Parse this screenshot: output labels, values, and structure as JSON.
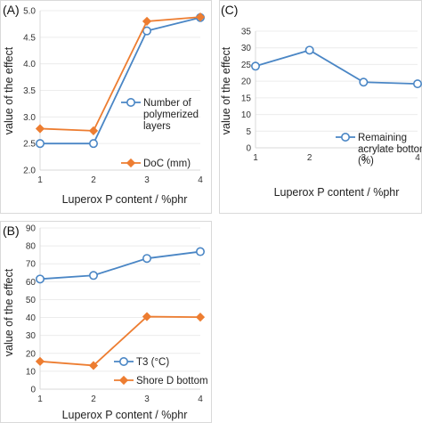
{
  "chart_data": [
    {
      "type": "line",
      "panel": "(A)",
      "xlabel": "Luperox P content / %phr",
      "ylabel": "value of the effect",
      "x": [
        1,
        2,
        3,
        4
      ],
      "xticks": [
        "1",
        "2",
        "3",
        "4"
      ],
      "ylim": [
        2.0,
        5.0
      ],
      "yticks": [
        "2.0",
        "2.5",
        "3.0",
        "3.5",
        "4.0",
        "4.5",
        "5.0"
      ],
      "series": [
        {
          "name": "Number of polymerized layers",
          "legend_lines": [
            "Number of",
            "polymerized",
            "layers"
          ],
          "marker": "circle",
          "color": "#4a86c5",
          "values": [
            2.5,
            2.5,
            4.62,
            4.87
          ]
        },
        {
          "name": "DoC (mm)",
          "legend_lines": [
            "DoC (mm)"
          ],
          "marker": "diamond",
          "color": "#ed7d31",
          "values": [
            2.78,
            2.74,
            4.8,
            4.88
          ]
        }
      ]
    },
    {
      "type": "line",
      "panel": "(C)",
      "xlabel": "Luperox P content / %phr",
      "ylabel": "value of the effect",
      "x": [
        1,
        2,
        3,
        4
      ],
      "xticks": [
        "1",
        "2",
        "3",
        "4"
      ],
      "ylim": [
        0,
        35
      ],
      "yticks": [
        "0",
        "5",
        "10",
        "15",
        "20",
        "25",
        "30",
        "35"
      ],
      "series": [
        {
          "name": "Remaining acrylate bottom (%)",
          "legend_lines": [
            "Remaining",
            "acrylate bottom",
            "(%)"
          ],
          "marker": "circle",
          "color": "#4a86c5",
          "values": [
            24.5,
            29.3,
            19.7,
            19.2
          ]
        }
      ]
    },
    {
      "type": "line",
      "panel": "(B)",
      "xlabel": "Luperox P content / %phr",
      "ylabel": "value of the effect",
      "x": [
        1,
        2,
        3,
        4
      ],
      "xticks": [
        "1",
        "2",
        "3",
        "4"
      ],
      "ylim": [
        0,
        90
      ],
      "yticks": [
        "0",
        "10",
        "20",
        "30",
        "40",
        "50",
        "60",
        "70",
        "80",
        "90"
      ],
      "series": [
        {
          "name": "T3 (°C)",
          "legend_lines": [
            "T3 (°C)"
          ],
          "marker": "circle",
          "color": "#4a86c5",
          "values": [
            61.5,
            63.5,
            73,
            76.8
          ]
        },
        {
          "name": "Shore D bottom",
          "legend_lines": [
            "Shore D bottom"
          ],
          "marker": "diamond",
          "color": "#ed7d31",
          "values": [
            15.5,
            13.2,
            40.5,
            40.2
          ]
        }
      ]
    }
  ]
}
